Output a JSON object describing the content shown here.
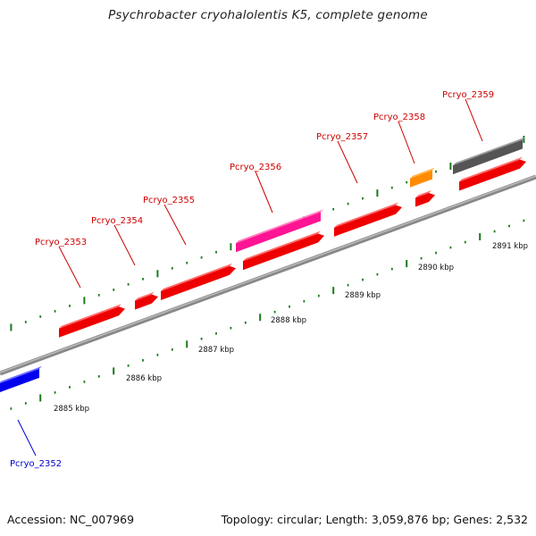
{
  "title": "Psychrobacter cryohalolentis K5, complete genome",
  "footer": {
    "accession": "Accession: NC_007969",
    "summary": "Topology: circular; Length: 3,059,876 bp; Genes: 2,532"
  },
  "genes": [
    {
      "name": "Pcryo_2352",
      "color": "#0000ee",
      "label_color": "#0000cc",
      "strand": "forward-lower"
    },
    {
      "name": "Pcryo_2353",
      "color": "#ee0000",
      "label_color": "#cc0000",
      "strand": "forward"
    },
    {
      "name": "Pcryo_2354",
      "color": "#ee0000",
      "label_color": "#cc0000",
      "strand": "forward"
    },
    {
      "name": "Pcryo_2355",
      "color": "#ee0000",
      "label_color": "#cc0000",
      "strand": "forward"
    },
    {
      "name": "Pcryo_2356",
      "color": "#ee0000",
      "label_color": "#cc0000",
      "strand": "forward"
    },
    {
      "name": "Pcryo_2357",
      "color": "#ee0000",
      "label_color": "#cc0000",
      "strand": "forward"
    },
    {
      "name": "Pcryo_2358",
      "color": "#ee0000",
      "label_color": "#cc0000",
      "strand": "forward"
    },
    {
      "name": "Pcryo_2359",
      "color": "#ee0000",
      "label_color": "#cc0000",
      "strand": "forward"
    }
  ],
  "features": [
    {
      "type": "pink-feature",
      "color": "#ff1493"
    },
    {
      "type": "orange-feature",
      "color": "#ff8c00"
    },
    {
      "type": "gray-feature",
      "color": "#555555"
    }
  ],
  "kbp_ticks": [
    "2885 kbp",
    "2886 kbp",
    "2887 kbp",
    "2888 kbp",
    "2889 kbp",
    "2890 kbp",
    "2891 kbp"
  ]
}
